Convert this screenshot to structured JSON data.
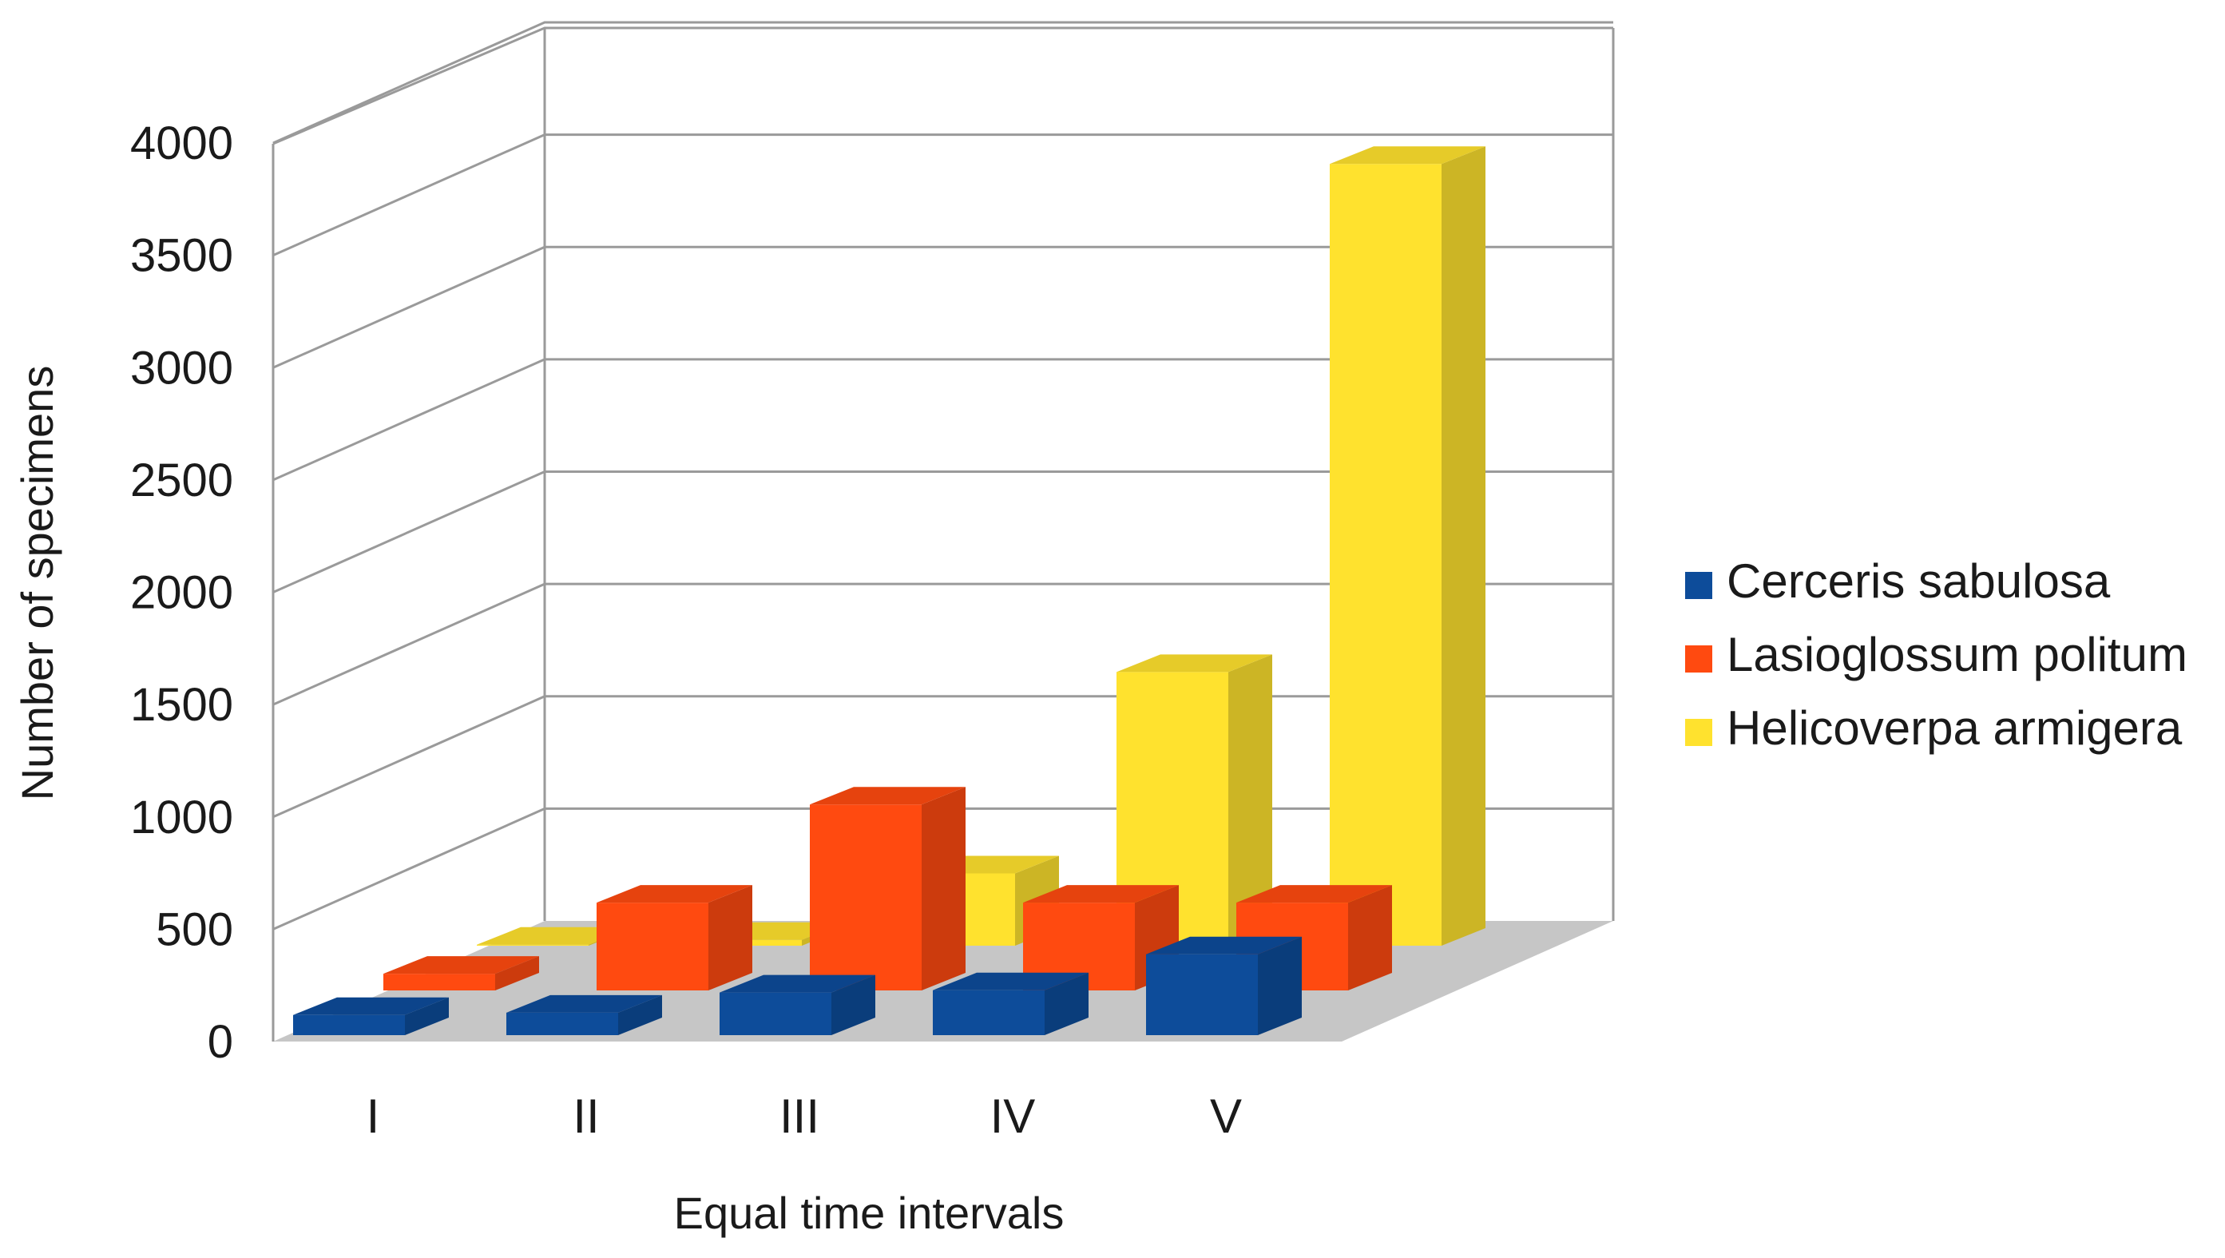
{
  "chart_data": {
    "type": "bar",
    "categories": [
      "I",
      "II",
      "III",
      "IV",
      "V"
    ],
    "series": [
      {
        "name": "Cerceris sabulosa",
        "values": [
          90,
          100,
          190,
          200,
          360
        ],
        "color": "#0d4c9a"
      },
      {
        "name": "Lasioglossum politum",
        "values": [
          80,
          420,
          890,
          420,
          420
        ],
        "color": "#ff4a10"
      },
      {
        "name": "Helicoverpa armigera",
        "values": [
          5,
          30,
          370,
          1400,
          4000
        ],
        "color": "#ffe22e"
      }
    ],
    "xlabel": "Equal time intervals",
    "ylabel": "Number of specimens",
    "ylim": [
      0,
      4000
    ],
    "yticks": [
      "0",
      "500",
      "1000",
      "1500",
      "2000",
      "2500",
      "3000",
      "3500",
      "4000"
    ],
    "legend": "right",
    "grid": true,
    "floor_color": "#c6c6c6"
  }
}
